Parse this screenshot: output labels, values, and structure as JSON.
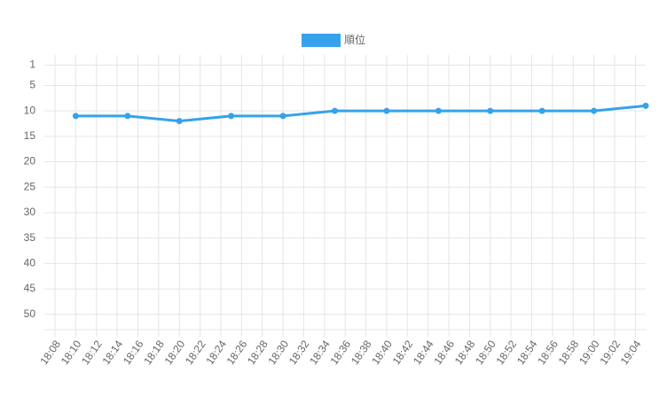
{
  "chart_data": {
    "type": "line",
    "legend": "top",
    "series": [
      {
        "name": "順位",
        "color": "#36a2eb",
        "x": [
          "18:10",
          "18:15",
          "18:20",
          "18:25",
          "18:30",
          "18:35",
          "18:40",
          "18:45",
          "18:50",
          "18:55",
          "19:00",
          "19:05"
        ],
        "values": [
          11,
          11,
          12,
          11,
          11,
          10,
          10,
          10,
          10,
          10,
          10,
          9
        ]
      }
    ],
    "y_reversed": true,
    "ylim": [
      -1,
      53
    ],
    "yticks": [
      1,
      5,
      10,
      15,
      20,
      25,
      30,
      35,
      40,
      45,
      50
    ],
    "xlim": [
      "18:08",
      "19:05"
    ],
    "xticks": [
      "18:08",
      "18:10",
      "18:12",
      "18:14",
      "18:16",
      "18:18",
      "18:20",
      "18:22",
      "18:24",
      "18:26",
      "18:28",
      "18:30",
      "18:32",
      "18:34",
      "18:36",
      "18:38",
      "18:40",
      "18:42",
      "18:44",
      "18:46",
      "18:48",
      "18:50",
      "18:52",
      "18:54",
      "18:56",
      "18:58",
      "19:00",
      "19:02",
      "19:04"
    ],
    "grid": true
  }
}
